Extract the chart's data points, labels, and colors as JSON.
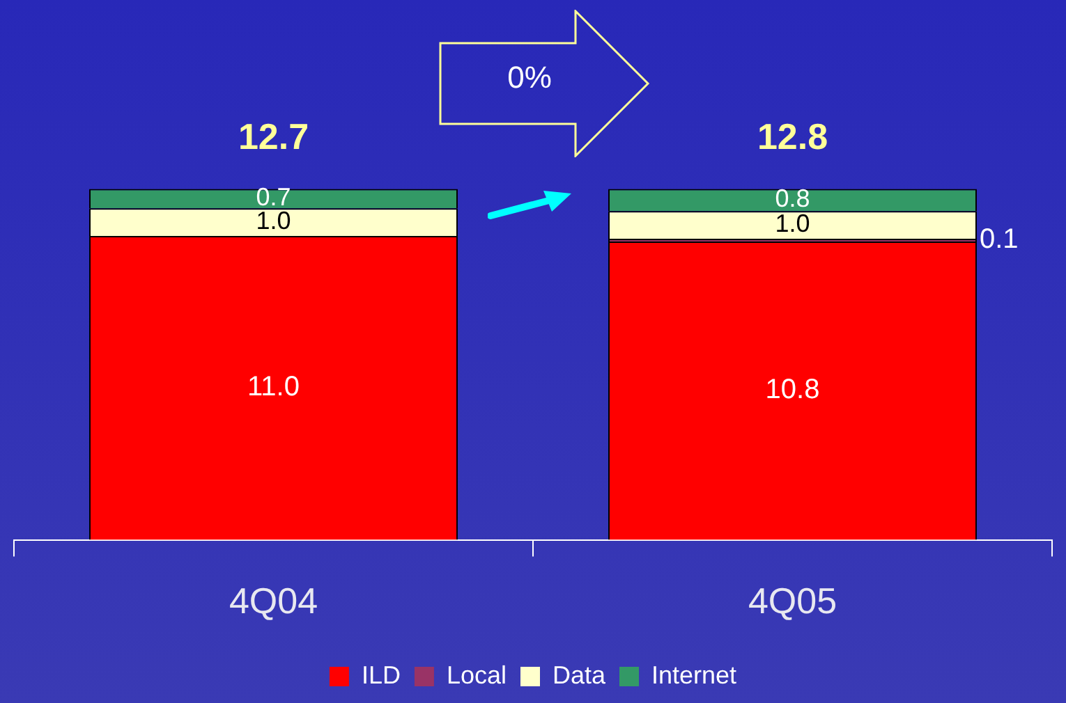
{
  "chart_data": {
    "type": "bar",
    "stacked": true,
    "categories": [
      "4Q04",
      "4Q05"
    ],
    "series": [
      {
        "name": "ILD",
        "color": "#ff0000",
        "values": [
          11.0,
          10.8
        ],
        "value_labels": [
          "11.0",
          "10.8"
        ]
      },
      {
        "name": "Local",
        "color": "#993366",
        "values": [
          0,
          0.1
        ],
        "value_labels": [
          null,
          "0.1"
        ]
      },
      {
        "name": "Data",
        "color": "#ffffcc",
        "values": [
          1.0,
          1.0
        ],
        "value_labels": [
          "1.0",
          "1.0"
        ]
      },
      {
        "name": "Internet",
        "color": "#339966",
        "values": [
          0.7,
          0.8
        ],
        "value_labels": [
          "0.7",
          "0.8"
        ]
      }
    ],
    "totals": [
      "12.7",
      "12.8"
    ],
    "annotations": [
      "0%"
    ],
    "legend": "bottom"
  }
}
